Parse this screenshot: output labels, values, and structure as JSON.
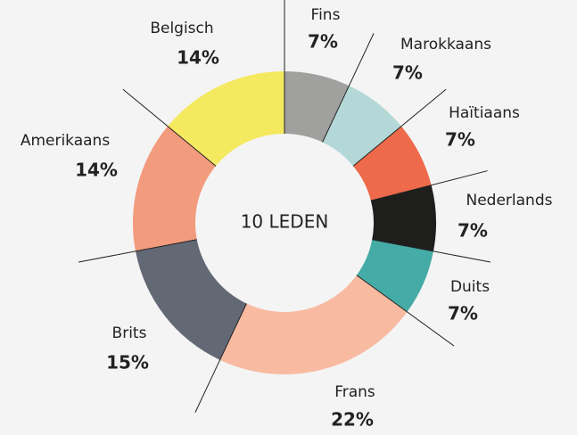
{
  "chart_data": {
    "type": "pie",
    "center_label": "10 LEDEN",
    "categories": [
      "Fins",
      "Marokkaans",
      "Haïtiaans",
      "Nederlands",
      "Duits",
      "Frans",
      "Brits",
      "Amerikaans",
      "Belgisch"
    ],
    "values": [
      7,
      7,
      7,
      7,
      7,
      22,
      15,
      14,
      14
    ],
    "value_labels": [
      "7%",
      "7%",
      "7%",
      "7%",
      "7%",
      "22%",
      "15%",
      "14%",
      "14%"
    ],
    "colors": [
      "#a0a09f",
      "#b3d8d7",
      "#ee6a4a",
      "#1e1e1c",
      "#45aba6",
      "#f8bba2",
      "#636875",
      "#f29b7d",
      "#f5e960"
    ]
  }
}
